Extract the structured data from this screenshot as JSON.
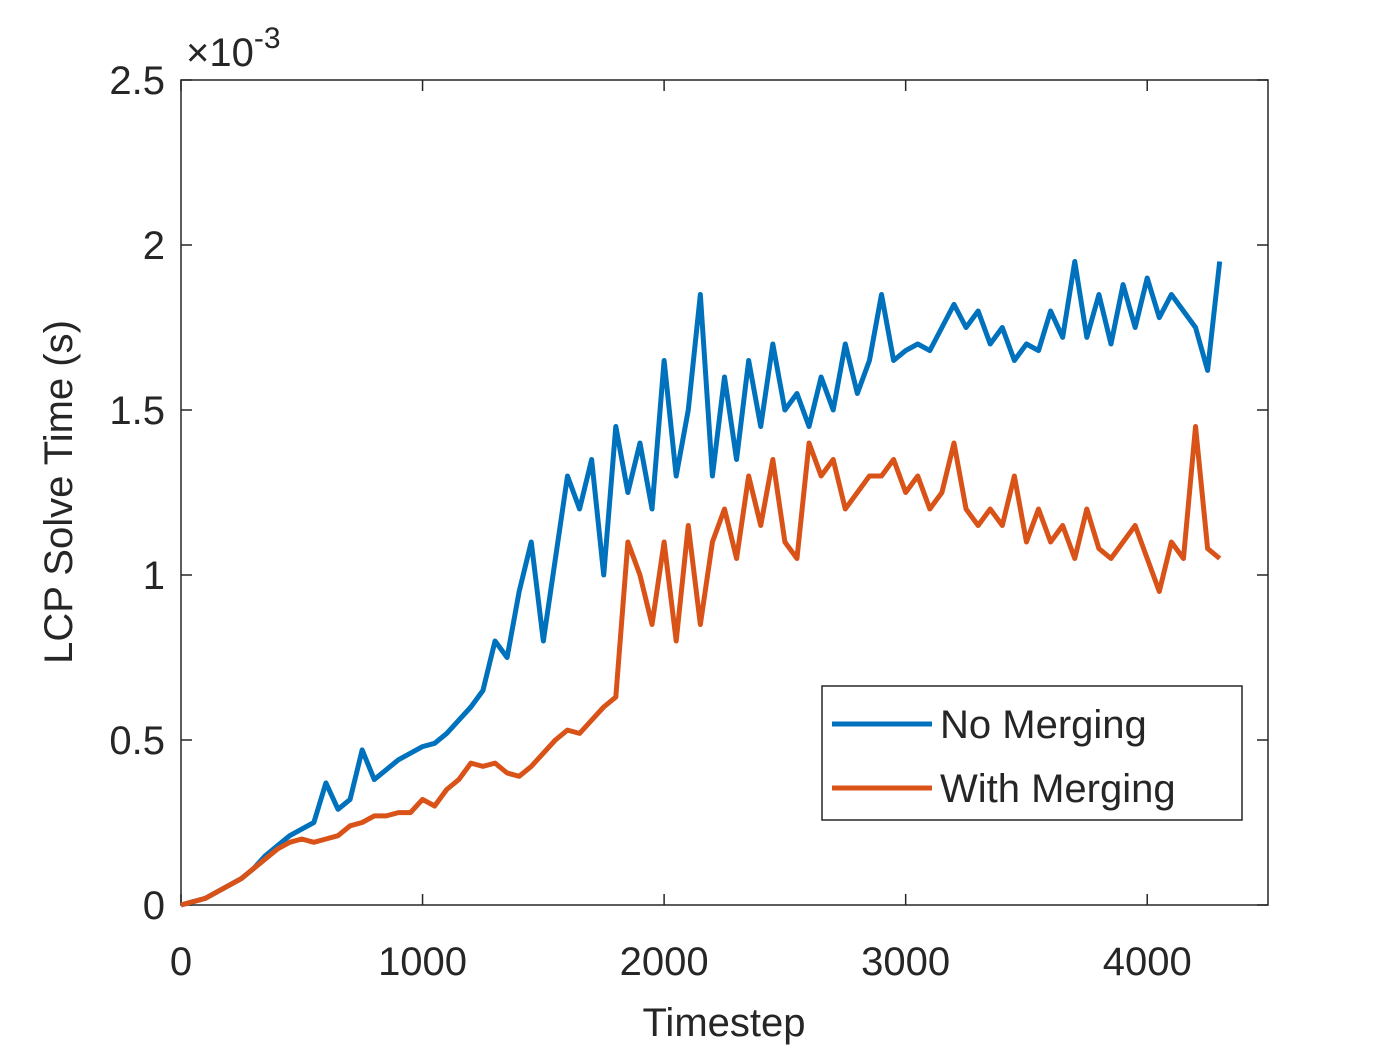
{
  "chart_data": {
    "type": "line",
    "xlabel": "Timestep",
    "ylabel": "LCP Solve Time (s)",
    "y_multiplier": {
      "base": "×10",
      "exponent": "-3"
    },
    "x": [
      0,
      50,
      100,
      150,
      200,
      250,
      300,
      350,
      400,
      450,
      500,
      550,
      600,
      650,
      700,
      750,
      800,
      850,
      900,
      950,
      1000,
      1050,
      1100,
      1150,
      1200,
      1250,
      1300,
      1350,
      1400,
      1450,
      1500,
      1550,
      1600,
      1650,
      1700,
      1750,
      1800,
      1850,
      1900,
      1950,
      2000,
      2050,
      2100,
      2150,
      2200,
      2250,
      2300,
      2350,
      2400,
      2450,
      2500,
      2550,
      2600,
      2650,
      2700,
      2750,
      2800,
      2850,
      2900,
      2950,
      3000,
      3050,
      3100,
      3150,
      3200,
      3250,
      3300,
      3350,
      3400,
      3450,
      3500,
      3550,
      3600,
      3650,
      3700,
      3750,
      3800,
      3850,
      3900,
      3950,
      4000,
      4050,
      4100,
      4150,
      4200,
      4250,
      4300
    ],
    "series": [
      {
        "name": "No Merging",
        "color": "#0072BD",
        "values": [
          0,
          0.01,
          0.02,
          0.04,
          0.06,
          0.08,
          0.11,
          0.15,
          0.18,
          0.21,
          0.23,
          0.25,
          0.37,
          0.29,
          0.32,
          0.47,
          0.38,
          0.41,
          0.44,
          0.46,
          0.48,
          0.49,
          0.52,
          0.56,
          0.6,
          0.65,
          0.8,
          0.75,
          0.95,
          1.1,
          0.8,
          1.05,
          1.3,
          1.2,
          1.35,
          1.0,
          1.45,
          1.25,
          1.4,
          1.2,
          1.65,
          1.3,
          1.5,
          1.85,
          1.3,
          1.6,
          1.35,
          1.65,
          1.45,
          1.7,
          1.5,
          1.55,
          1.45,
          1.6,
          1.5,
          1.7,
          1.55,
          1.65,
          1.85,
          1.65,
          1.68,
          1.7,
          1.68,
          1.75,
          1.82,
          1.75,
          1.8,
          1.7,
          1.75,
          1.65,
          1.7,
          1.68,
          1.8,
          1.72,
          1.95,
          1.72,
          1.85,
          1.7,
          1.88,
          1.75,
          1.9,
          1.78,
          1.85,
          1.8,
          1.75,
          1.62,
          1.95
        ]
      },
      {
        "name": "With Merging",
        "color": "#D95319",
        "values": [
          0,
          0.01,
          0.02,
          0.04,
          0.06,
          0.08,
          0.11,
          0.14,
          0.17,
          0.19,
          0.2,
          0.19,
          0.2,
          0.21,
          0.24,
          0.25,
          0.27,
          0.27,
          0.28,
          0.28,
          0.32,
          0.3,
          0.35,
          0.38,
          0.43,
          0.42,
          0.43,
          0.4,
          0.39,
          0.42,
          0.46,
          0.5,
          0.53,
          0.52,
          0.56,
          0.6,
          0.63,
          1.1,
          1.0,
          0.85,
          1.1,
          0.8,
          1.15,
          0.85,
          1.1,
          1.2,
          1.05,
          1.3,
          1.15,
          1.35,
          1.1,
          1.05,
          1.4,
          1.3,
          1.35,
          1.2,
          1.25,
          1.3,
          1.3,
          1.35,
          1.25,
          1.3,
          1.2,
          1.25,
          1.4,
          1.2,
          1.15,
          1.2,
          1.15,
          1.3,
          1.1,
          1.2,
          1.1,
          1.15,
          1.05,
          1.2,
          1.08,
          1.05,
          1.1,
          1.15,
          1.05,
          0.95,
          1.1,
          1.05,
          1.45,
          1.08,
          1.05
        ]
      }
    ],
    "xlim": [
      0,
      4500
    ],
    "xticks": [
      0,
      1000,
      2000,
      3000,
      4000
    ],
    "ylim": [
      0,
      2.5
    ],
    "yticks": [
      0,
      0.5,
      1,
      1.5,
      2,
      2.5
    ],
    "legend": "southeast",
    "grid": false
  }
}
